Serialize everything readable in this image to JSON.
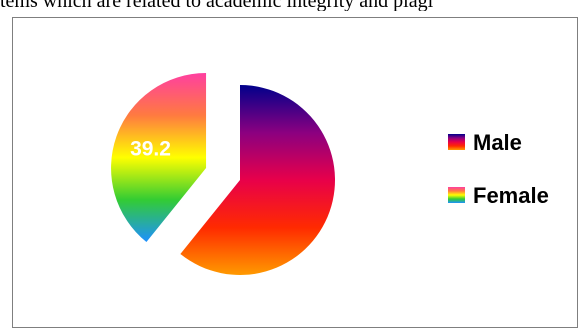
{
  "document": {
    "caption_fragment": "tems which are related to academic integrity and plagi"
  },
  "chart_data": {
    "type": "pie",
    "title": "",
    "slices": [
      {
        "name": "Male",
        "value": 60.8,
        "label": ""
      },
      {
        "name": "Female",
        "value": 39.2,
        "label": "39.2"
      }
    ],
    "legend": {
      "placement": "right",
      "items": [
        "Male",
        "Female"
      ]
    },
    "colors": {
      "male_gradient": [
        "#00008b",
        "#8b0080",
        "#e8004a",
        "#ff2a00",
        "#ff9a00"
      ],
      "female_gradient": [
        "#ff3fa0",
        "#ff7a40",
        "#ffff00",
        "#33cc33",
        "#1e90ff"
      ],
      "frame_border": "#7f7f7f",
      "label_text": "#ffffff"
    }
  }
}
